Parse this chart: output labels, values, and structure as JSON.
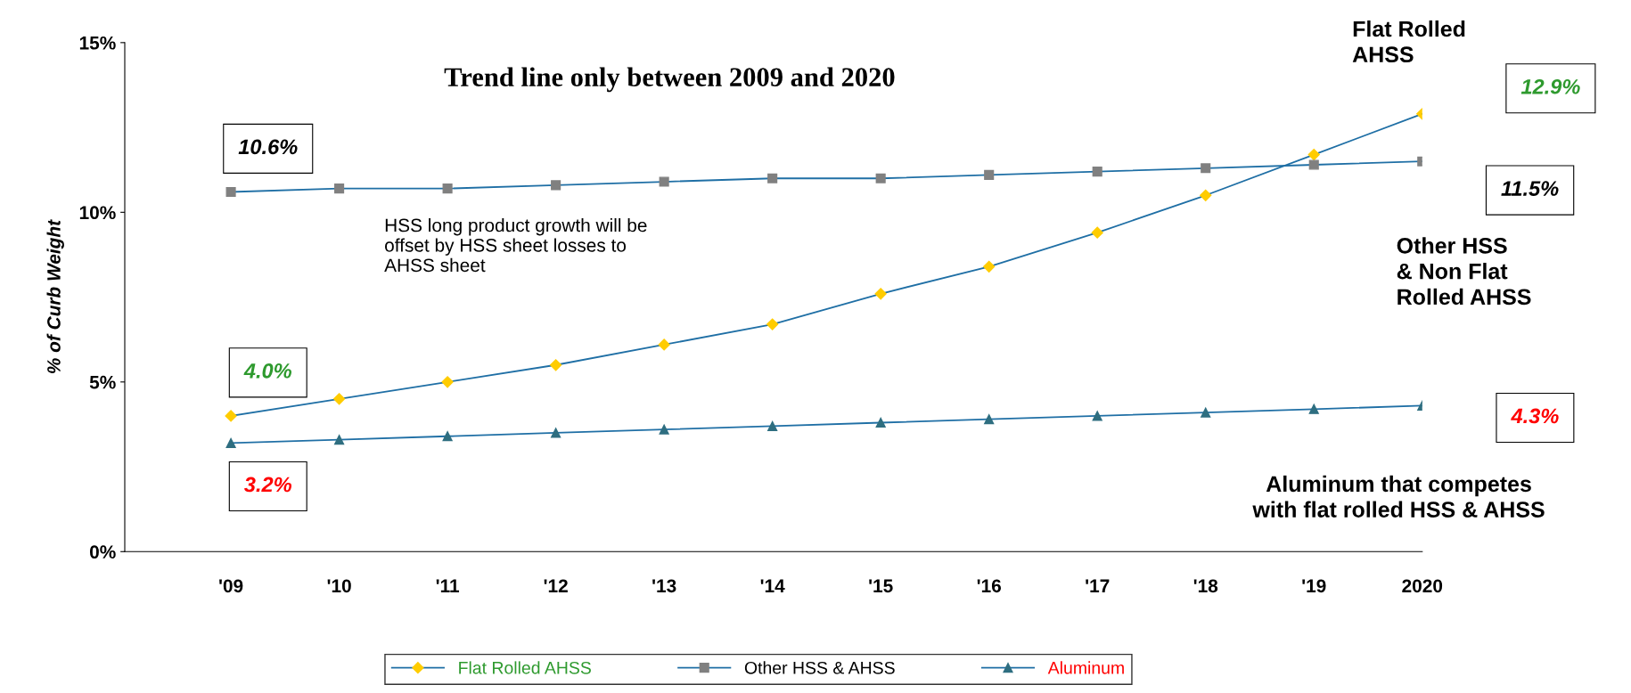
{
  "chart_data": {
    "type": "line",
    "title": "Trend line only between 2009 and 2020",
    "ylabel": "% of Curb Weight",
    "categories": [
      "'09",
      "'10",
      "'11",
      "'12",
      "'13",
      "'14",
      "'15",
      "'16",
      "'17",
      "'18",
      "'19",
      "2020"
    ],
    "series": [
      {
        "name": "Flat Rolled AHSS",
        "color": "#ffcc00",
        "marker": "diamond",
        "values": [
          4.0,
          4.5,
          5.0,
          5.5,
          6.1,
          6.7,
          7.6,
          8.4,
          9.4,
          10.5,
          11.7,
          12.9
        ]
      },
      {
        "name": "Other HSS & AHSS",
        "color": "#808080",
        "marker": "square",
        "values": [
          10.6,
          10.7,
          10.7,
          10.8,
          10.9,
          11.0,
          11.0,
          11.1,
          11.2,
          11.3,
          11.4,
          11.5
        ]
      },
      {
        "name": "Aluminum",
        "color": "#2e6e80",
        "marker": "triangle",
        "values": [
          3.2,
          3.3,
          3.4,
          3.5,
          3.6,
          3.7,
          3.8,
          3.9,
          4.0,
          4.1,
          4.2,
          4.3
        ]
      }
    ],
    "ylim": [
      0,
      15
    ],
    "yticks": [
      {
        "value": 0,
        "label": "0%"
      },
      {
        "value": 5,
        "label": "5%"
      },
      {
        "value": 10,
        "label": "10%"
      },
      {
        "value": 15,
        "label": "15%"
      }
    ],
    "annotations": [
      {
        "text": "10.6%",
        "x": "'09",
        "y": 10.6
      },
      {
        "text": "4.0%",
        "x": "'09",
        "y": 4.0
      },
      {
        "text": "3.2%",
        "x": "'09",
        "y": 3.2
      },
      "12.9%",
      "11.5%",
      "4.3%",
      "Flat Rolled\nAHSS",
      "Other HSS\n& Non Flat\nRolled AHSS",
      "Aluminum that competes\nwith flat rolled HSS & AHSS",
      "HSS long product growth will be\noffset by HSS sheet losses to\nAHSS sheet"
    ],
    "grid": false,
    "legend": "bottom",
    "line_style": "solid"
  }
}
